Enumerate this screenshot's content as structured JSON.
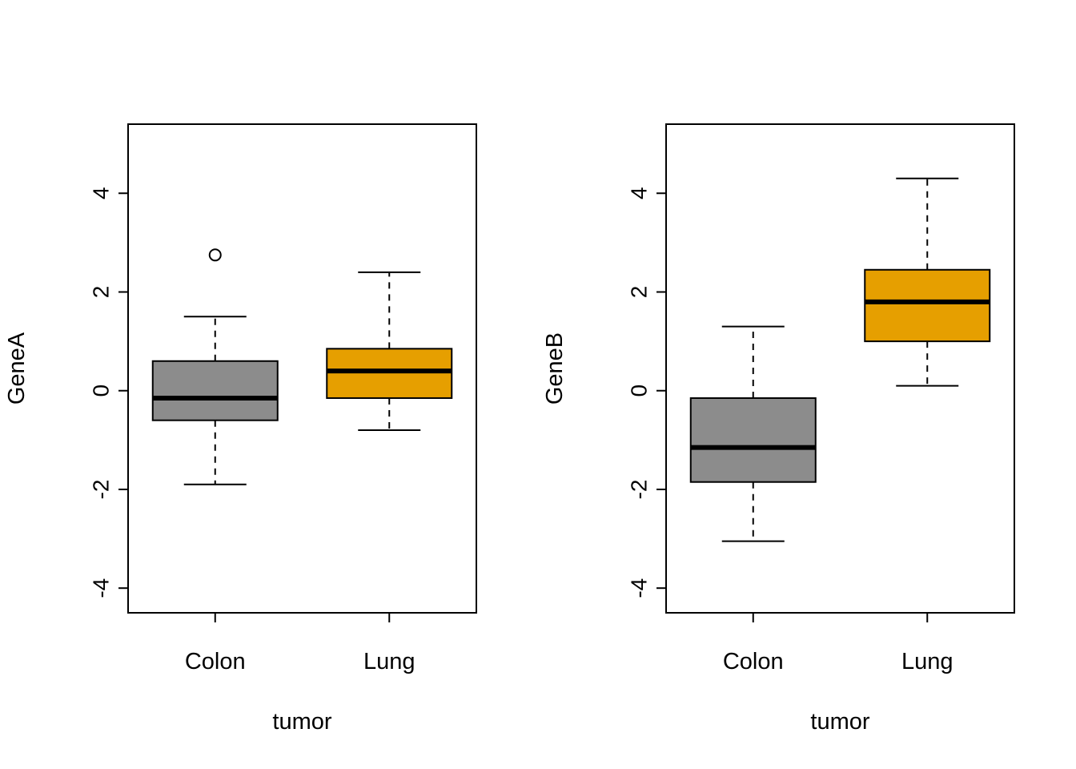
{
  "figure": {
    "background": "#ffffff",
    "box_border_color": "#000000"
  },
  "chart_data": [
    {
      "type": "boxplot",
      "title": "",
      "xlabel": "tumor",
      "ylabel": "GeneA",
      "categories": [
        "Colon",
        "Lung"
      ],
      "ylim": [
        -4.5,
        5.4
      ],
      "yticks": [
        -4,
        -2,
        0,
        2,
        4
      ],
      "grid": false,
      "series": [
        {
          "name": "Colon",
          "color": "#8C8C8C",
          "whisker_low": -1.9,
          "q1": -0.6,
          "median": -0.15,
          "q3": 0.6,
          "whisker_high": 1.5,
          "outliers": [
            2.75
          ]
        },
        {
          "name": "Lung",
          "color": "#E69F00",
          "whisker_low": -0.8,
          "q1": -0.15,
          "median": 0.4,
          "q3": 0.85,
          "whisker_high": 2.4,
          "outliers": []
        }
      ]
    },
    {
      "type": "boxplot",
      "title": "",
      "xlabel": "tumor",
      "ylabel": "GeneB",
      "categories": [
        "Colon",
        "Lung"
      ],
      "ylim": [
        -4.5,
        5.4
      ],
      "yticks": [
        -4,
        -2,
        0,
        2,
        4
      ],
      "grid": false,
      "series": [
        {
          "name": "Colon",
          "color": "#8C8C8C",
          "whisker_low": -3.05,
          "q1": -1.85,
          "median": -1.15,
          "q3": -0.15,
          "whisker_high": 1.3,
          "outliers": []
        },
        {
          "name": "Lung",
          "color": "#E69F00",
          "whisker_low": 0.1,
          "q1": 1.0,
          "median": 1.8,
          "q3": 2.45,
          "whisker_high": 4.3,
          "outliers": []
        }
      ]
    }
  ]
}
